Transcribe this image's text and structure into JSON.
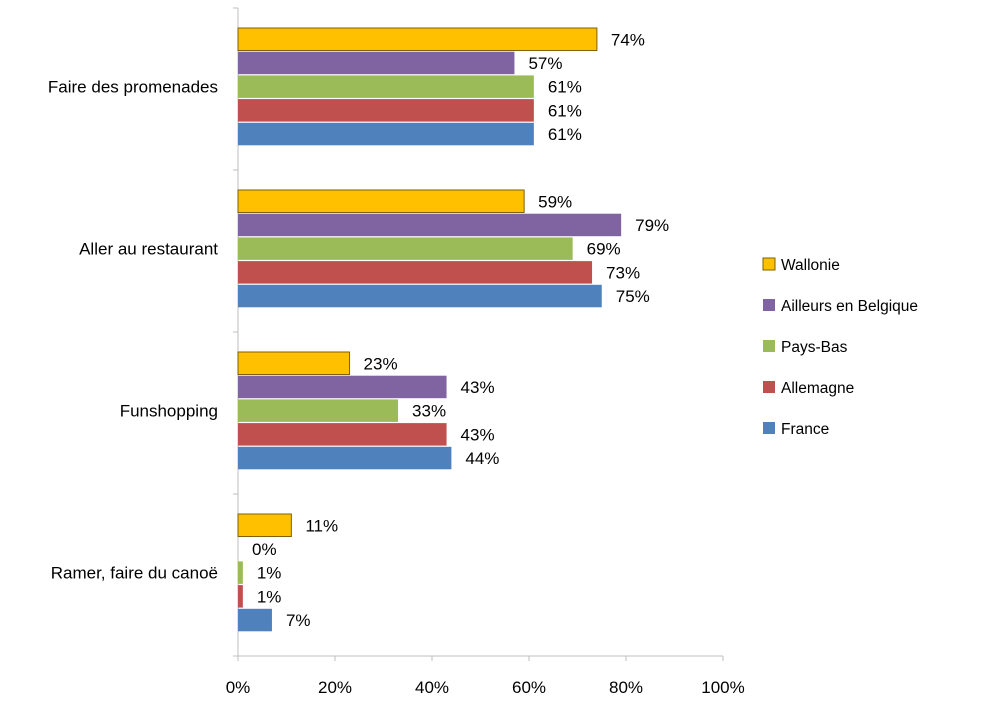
{
  "chart_data": {
    "type": "bar",
    "orientation": "horizontal",
    "categories": [
      "Faire des promenades",
      "Aller au restaurant",
      "Funshopping",
      "Ramer, faire du canoë"
    ],
    "series": [
      {
        "name": "Wallonie",
        "color": "#FFC000",
        "values": [
          74,
          59,
          23,
          11
        ],
        "labels": [
          "74%",
          "59%",
          "23%",
          "11%"
        ]
      },
      {
        "name": "Ailleurs en Belgique",
        "color": "#8064A2",
        "values": [
          57,
          79,
          43,
          0
        ],
        "labels": [
          "57%",
          "79%",
          "43%",
          "0%"
        ]
      },
      {
        "name": "Pays-Bas",
        "color": "#9BBB59",
        "values": [
          61,
          69,
          33,
          1
        ],
        "labels": [
          "61%",
          "69%",
          "33%",
          "1%"
        ]
      },
      {
        "name": "Allemagne",
        "color": "#C0504D",
        "values": [
          61,
          73,
          43,
          1
        ],
        "labels": [
          "61%",
          "73%",
          "43%",
          "1%"
        ]
      },
      {
        "name": "France",
        "color": "#4F81BD",
        "values": [
          61,
          75,
          44,
          7
        ],
        "labels": [
          "61%",
          "75%",
          "44%",
          "7%"
        ]
      }
    ],
    "xlim": [
      0,
      100
    ],
    "xticks": [
      0,
      20,
      40,
      60,
      80,
      100
    ],
    "xtick_labels": [
      "0%",
      "20%",
      "40%",
      "60%",
      "80%",
      "100%"
    ],
    "legend_order": [
      "Wallonie",
      "Ailleurs en Belgique",
      "Pays-Bas",
      "Allemagne",
      "France"
    ],
    "legend_position": "right",
    "grid": false,
    "title": "",
    "xlabel": "",
    "ylabel": ""
  }
}
